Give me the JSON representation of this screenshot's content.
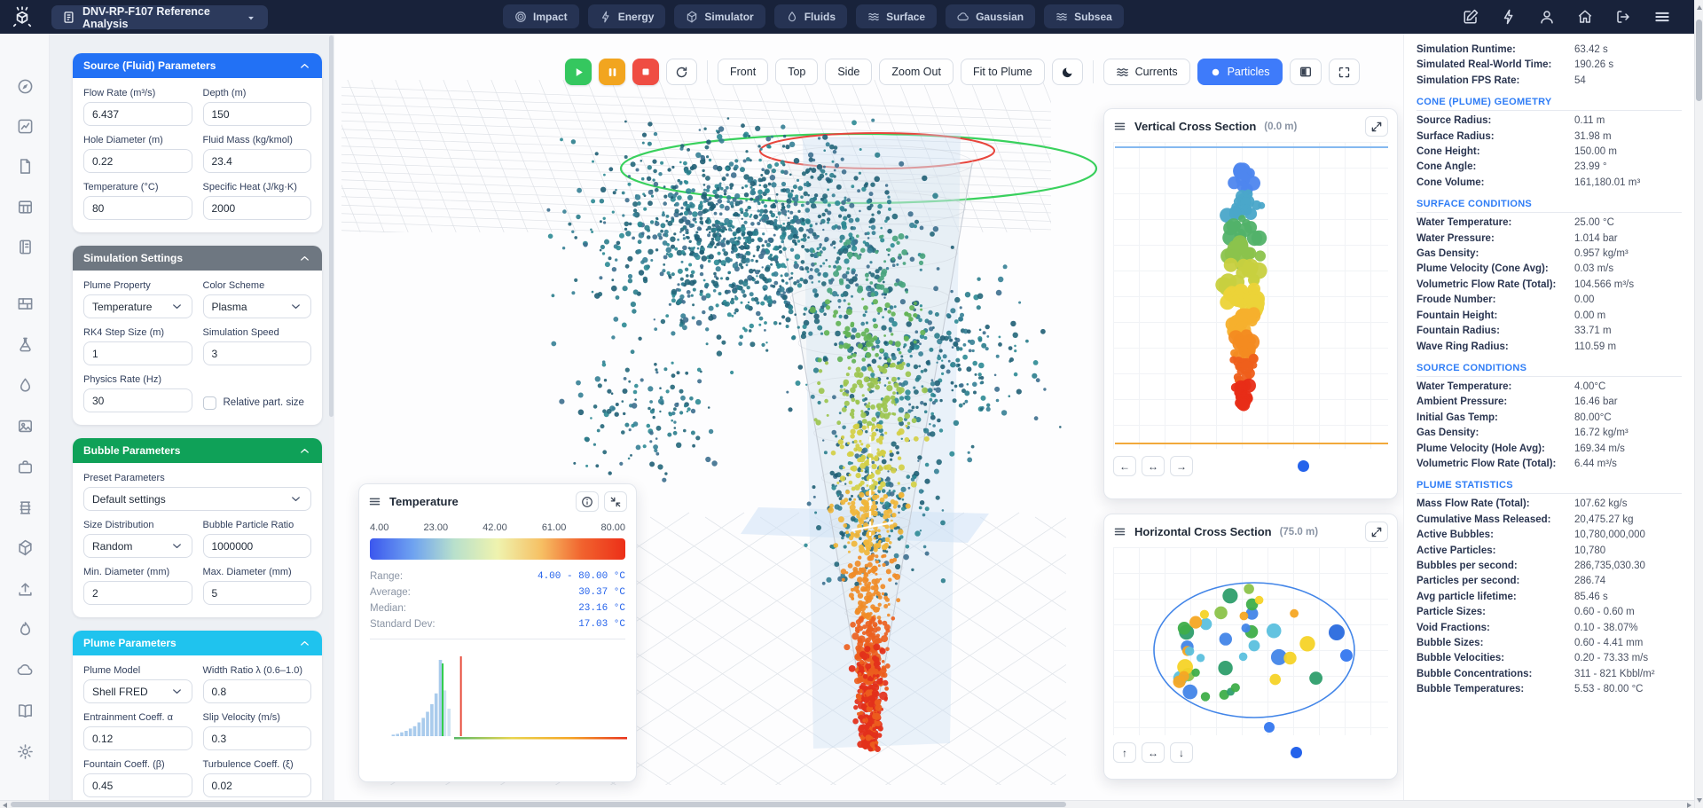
{
  "header": {
    "project": "DNV-RP-F107 Reference Analysis",
    "nav": [
      {
        "label": "Impact",
        "icon": "target-icon"
      },
      {
        "label": "Energy",
        "icon": "lightning-icon"
      },
      {
        "label": "Simulator",
        "icon": "cube-icon"
      },
      {
        "label": "Fluids",
        "icon": "droplet-icon"
      },
      {
        "label": "Surface",
        "icon": "waves-icon"
      },
      {
        "label": "Gaussian",
        "icon": "cloud-icon"
      },
      {
        "label": "Subsea",
        "icon": "waves-icon"
      }
    ]
  },
  "toolbar": {
    "views": [
      "Front",
      "Top",
      "Side",
      "Zoom Out",
      "Fit to Plume"
    ],
    "currents": "Currents",
    "particles": "Particles",
    "particles_active_color": "#3e7bfa"
  },
  "left_panel": {
    "sections": [
      {
        "title": "Source (Fluid) Parameters",
        "color": "#2271f5",
        "fields": [
          {
            "label": "Flow Rate (m³/s)",
            "value": "6.437",
            "type": "input"
          },
          {
            "label": "Depth (m)",
            "value": "150",
            "type": "input"
          },
          {
            "label": "Hole Diameter (m)",
            "value": "0.22",
            "type": "input"
          },
          {
            "label": "Fluid Mass (kg/kmol)",
            "value": "23.4",
            "type": "input"
          },
          {
            "label": "Temperature (°C)",
            "value": "80",
            "type": "input"
          },
          {
            "label": "Specific Heat (J/kg·K)",
            "value": "2000",
            "type": "input"
          }
        ]
      },
      {
        "title": "Simulation Settings",
        "color": "#6e7781",
        "fields": [
          {
            "label": "Plume Property",
            "value": "Temperature",
            "type": "select"
          },
          {
            "label": "Color Scheme",
            "value": "Plasma",
            "type": "select"
          },
          {
            "label": "RK4 Step Size (m)",
            "value": "1",
            "type": "input"
          },
          {
            "label": "Simulation Speed",
            "value": "3",
            "type": "input"
          },
          {
            "label": "Physics Rate (Hz)",
            "value": "30",
            "type": "input"
          },
          {
            "label": "Relative part. size",
            "checked": false,
            "type": "checkbox"
          }
        ]
      },
      {
        "title": "Bubble Parameters",
        "color": "#0fa158",
        "fields": [
          {
            "label": "Preset Parameters",
            "value": "Default settings",
            "type": "select",
            "span": 2
          },
          {
            "label": "Size Distribution",
            "value": "Random",
            "type": "select"
          },
          {
            "label": "Bubble Particle Ratio",
            "value": "1000000",
            "type": "input"
          },
          {
            "label": "Min. Diameter (mm)",
            "value": "2",
            "type": "input"
          },
          {
            "label": "Max. Diameter (mm)",
            "value": "5",
            "type": "input"
          }
        ]
      },
      {
        "title": "Plume Parameters",
        "color": "#1fc3ee",
        "fields": [
          {
            "label": "Plume Model",
            "value": "Shell FRED",
            "type": "select"
          },
          {
            "label": "Width Ratio λ (0.6–1.0)",
            "value": "0.8",
            "type": "input"
          },
          {
            "label": "Entrainment Coeff. α",
            "value": "0.12",
            "type": "input"
          },
          {
            "label": "Slip Velocity (m/s)",
            "value": "0.3",
            "type": "input"
          },
          {
            "label": "Fountain Coeff. (β)",
            "value": "0.45",
            "type": "input"
          },
          {
            "label": "Turbulence Coeff. (ξ)",
            "value": "0.02",
            "type": "input"
          }
        ]
      }
    ]
  },
  "panels": {
    "temperature": {
      "title": "Temperature",
      "ticks": [
        "4.00",
        "23.00",
        "42.00",
        "61.00",
        "80.00"
      ],
      "stats": [
        {
          "label": "Range:",
          "value": "4.00 - 80.00 °C"
        },
        {
          "label": "Average:",
          "value": "30.37 °C"
        },
        {
          "label": "Median:",
          "value": "23.16 °C"
        },
        {
          "label": "Standard Dev:",
          "value": "17.03 °C"
        }
      ]
    },
    "vertical": {
      "title": "Vertical Cross Section",
      "plane": "(0.0 m)"
    },
    "horizontal": {
      "title": "Horizontal Cross Section",
      "plane": "(75.0 m)"
    }
  },
  "stats": {
    "top": [
      {
        "label": "Simulation Runtime:",
        "value": "63.42 s"
      },
      {
        "label": "Simulated Real-World Time:",
        "value": "190.26 s"
      },
      {
        "label": "Simulation FPS Rate:",
        "value": "54"
      }
    ],
    "sections": [
      {
        "title": "CONE (PLUME) GEOMETRY",
        "rows": [
          {
            "label": "Source Radius:",
            "value": "0.11 m"
          },
          {
            "label": "Surface Radius:",
            "value": "31.98 m"
          },
          {
            "label": "Cone Height:",
            "value": "150.00 m"
          },
          {
            "label": "Cone Angle:",
            "value": "23.99 °"
          },
          {
            "label": "Cone Volume:",
            "value": "161,180.01 m³"
          }
        ]
      },
      {
        "title": "SURFACE CONDITIONS",
        "rows": [
          {
            "label": "Water Temperature:",
            "value": "25.00 °C"
          },
          {
            "label": "Water Pressure:",
            "value": "1.014 bar"
          },
          {
            "label": "Gas Density:",
            "value": "0.957 kg/m³"
          },
          {
            "label": "Plume Velocity (Cone Avg):",
            "value": "0.03 m/s"
          },
          {
            "label": "Volumetric Flow Rate (Total):",
            "value": "104.566 m³/s"
          },
          {
            "label": "Froude Number:",
            "value": "0.00"
          },
          {
            "label": "Fountain Height:",
            "value": "0.00 m"
          },
          {
            "label": "Fountain Radius:",
            "value": "33.71 m"
          },
          {
            "label": "Wave Ring Radius:",
            "value": "110.59 m"
          }
        ]
      },
      {
        "title": "SOURCE CONDITIONS",
        "rows": [
          {
            "label": "Water Temperature:",
            "value": "4.00°C"
          },
          {
            "label": "Ambient Pressure:",
            "value": "16.46 bar"
          },
          {
            "label": "Initial Gas Temp:",
            "value": "80.00°C"
          },
          {
            "label": "Gas Density:",
            "value": "16.72 kg/m³"
          },
          {
            "label": "Plume Velocity (Hole Avg):",
            "value": "169.34 m/s"
          },
          {
            "label": "Volumetric Flow Rate (Total):",
            "value": "6.44 m³/s"
          }
        ]
      },
      {
        "title": "PLUME STATISTICS",
        "rows": [
          {
            "label": "Mass Flow Rate (Total):",
            "value": "107.62 kg/s"
          },
          {
            "label": "Cumulative Mass Released:",
            "value": "20,475.27 kg"
          },
          {
            "label": "Active Bubbles:",
            "value": "10,780,000,000"
          },
          {
            "label": "Active Particles:",
            "value": "10,780"
          },
          {
            "label": "Bubbles per second:",
            "value": "286,735,030.30"
          },
          {
            "label": "Particles per second:",
            "value": "286.74"
          },
          {
            "label": "Avg particle lifetime:",
            "value": "85.46 s"
          },
          {
            "label": "Particle Sizes:",
            "value": "0.60 - 0.60 m"
          },
          {
            "label": "Void Fractions:",
            "value": "0.10 - 38.07%"
          },
          {
            "label": "Bubble Sizes:",
            "value": "0.60 - 4.41 mm"
          },
          {
            "label": "Bubble Velocities:",
            "value": "0.20 - 73.33 m/s"
          },
          {
            "label": "Bubble Concentrations:",
            "value": "311 - 821 Kbbl/m²"
          },
          {
            "label": "Bubble Temperatures:",
            "value": "5.53 - 80.00 °C"
          }
        ]
      }
    ]
  },
  "scene": {
    "particle_palette": [
      "#2a7d8c",
      "#23677a",
      "#357f95",
      "#2c8a93",
      "#1f5e74",
      "#3d6f8e"
    ],
    "plume_colormap": [
      "#49a47e",
      "#63b356",
      "#9cc44e",
      "#d4cf44",
      "#f0b63a",
      "#f08c28",
      "#eb611f",
      "#e3301b"
    ],
    "cone_color": "#c4cad3",
    "surface_ring_color": "#2ecf54",
    "wave_ring_color": "#e8453c",
    "plane_color": "#c9ddf3"
  },
  "chart_data": [
    {
      "id": "temperature_legend",
      "type": "bar",
      "title": "Temperature",
      "unit": "°C",
      "colorbar_ticks": [
        4.0,
        23.0,
        42.0,
        61.0,
        80.0
      ],
      "range_min": 4.0,
      "range_max": 80.0,
      "average": 30.37,
      "median": 23.16,
      "std_dev": 17.03,
      "gradient": [
        "#3b57ee",
        "#6fa3f0",
        "#b8e0cc",
        "#eff3ae",
        "#f6c064",
        "#f1632e",
        "#ec2f18"
      ],
      "histogram": {
        "values": [
          0,
          0,
          0,
          0,
          0,
          2,
          3,
          5,
          7,
          10,
          13,
          18,
          24,
          32,
          42,
          56,
          100,
          60,
          36,
          0,
          0,
          0,
          0,
          0,
          0,
          0,
          0,
          0,
          0,
          0,
          0,
          0,
          0,
          0,
          0,
          0,
          0,
          0,
          0,
          0,
          0,
          0,
          0,
          0,
          0,
          0,
          0,
          0,
          0,
          0,
          0,
          0,
          0,
          0,
          0,
          0,
          0,
          0,
          0,
          0
        ],
        "median_line_frac": 0.283,
        "mean_line_frac": 0.354,
        "bar_color": "#a9cbec",
        "tail_bar_color": "#cfe3f2",
        "median_line_color": "#2ecc47",
        "mean_line_color": "#e74c3c",
        "rug_gradient": [
          "#57b765",
          "#e8d44d",
          "#f5a623",
          "#e8301b"
        ]
      }
    },
    {
      "id": "vertical_cross_section",
      "type": "scatter",
      "title": "Vertical Cross Section",
      "plane_offset_m": 0.0,
      "depth_range_m": [
        0,
        150
      ],
      "surface_line_color": "#85b9f0",
      "source_line_color": "#f2a93b",
      "colormap": [
        "#4e86ee",
        "#4aa7c9",
        "#52b269",
        "#8bc34c",
        "#c8d03f",
        "#ecd338",
        "#f5b02d",
        "#f38b21",
        "#ee5f1b",
        "#e82d17"
      ],
      "point_count": 160,
      "note": "bubble plume column: cool blue bubbles near surface, hot red bubbles at depth"
    },
    {
      "id": "horizontal_cross_section",
      "type": "scatter",
      "title": "Horizontal Cross Section",
      "plane_depth_m": 75.0,
      "boundary_color": "#4285e8",
      "palette": [
        "#3fae49",
        "#8bc34a",
        "#f5d327",
        "#f5a623",
        "#4285e8",
        "#5bc0de",
        "#2e9e6b"
      ],
      "point_count": 40
    }
  ]
}
